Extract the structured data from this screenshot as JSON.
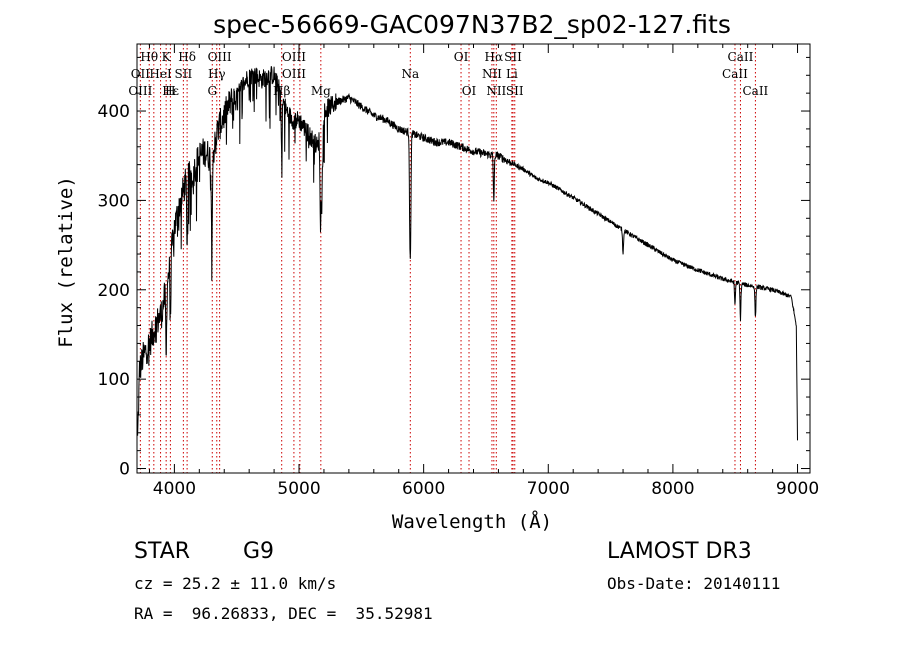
{
  "chart_data": {
    "type": "line",
    "title": "spec-56669-GAC097N37B2_sp02-127.fits",
    "xlabel": "Wavelength (Å)",
    "ylabel": "Flux (relative)",
    "xlim": [
      3700,
      9100
    ],
    "ylim": [
      -5,
      475
    ],
    "xticks": [
      4000,
      5000,
      6000,
      7000,
      8000,
      9000
    ],
    "yticks": [
      0,
      100,
      200,
      300,
      400
    ],
    "grid": false,
    "continuum": {
      "x": [
        3700,
        3720,
        3750,
        3800,
        3850,
        3900,
        3950,
        4000,
        4050,
        4100,
        4150,
        4200,
        4250,
        4300,
        4350,
        4400,
        4450,
        4500,
        4550,
        4600,
        4650,
        4700,
        4750,
        4800,
        4850,
        4900,
        4950,
        5000,
        5050,
        5100,
        5150,
        5200,
        5300,
        5400,
        5500,
        5600,
        5700,
        5800,
        5900,
        6000,
        6100,
        6200,
        6300,
        6400,
        6500,
        6600,
        6700,
        6800,
        6900,
        7000,
        7200,
        7400,
        7600,
        7800,
        8000,
        8200,
        8400,
        8600,
        8800,
        8950,
        8990,
        9000
      ],
      "y": [
        5,
        110,
        125,
        140,
        160,
        175,
        215,
        270,
        300,
        325,
        330,
        350,
        355,
        345,
        380,
        395,
        410,
        415,
        430,
        440,
        440,
        435,
        440,
        440,
        420,
        400,
        390,
        390,
        380,
        370,
        360,
        400,
        410,
        415,
        405,
        395,
        390,
        380,
        375,
        370,
        365,
        365,
        360,
        355,
        352,
        350,
        342,
        335,
        325,
        320,
        303,
        285,
        267,
        250,
        233,
        222,
        212,
        205,
        200,
        192,
        160,
        30
      ],
      "noise": 10
    },
    "absorption_features": [
      {
        "x": 3934,
        "depth": 80
      },
      {
        "x": 3969,
        "depth": 60
      },
      {
        "x": 4102,
        "depth": 70
      },
      {
        "x": 4300,
        "depth": 90
      },
      {
        "x": 4861,
        "depth": 60
      },
      {
        "x": 5172,
        "depth": 110
      },
      {
        "x": 5183,
        "depth": 90
      },
      {
        "x": 5890,
        "depth": 110
      },
      {
        "x": 5896,
        "depth": 80
      },
      {
        "x": 6563,
        "depth": 50
      },
      {
        "x": 7600,
        "depth": 25
      },
      {
        "x": 8498,
        "depth": 25
      },
      {
        "x": 8542,
        "depth": 40
      },
      {
        "x": 8662,
        "depth": 35
      }
    ],
    "spectral_lines": [
      {
        "label": "Hθ",
        "x": 3798,
        "row": 0
      },
      {
        "label": "K",
        "x": 3934,
        "row": 0
      },
      {
        "label": "Hδ",
        "x": 4102,
        "row": 0
      },
      {
        "label": "OIII",
        "x": 4363,
        "row": 0
      },
      {
        "label": "OIII",
        "x": 4959,
        "row": 0
      },
      {
        "label": "OI",
        "x": 6300,
        "row": 0
      },
      {
        "label": "Hα",
        "x": 6563,
        "row": 0
      },
      {
        "label": "SII",
        "x": 6717,
        "row": 0
      },
      {
        "label": "CaII",
        "x": 8542,
        "row": 0
      },
      {
        "label": "OII",
        "x": 3727,
        "row": 1
      },
      {
        "label": "HeI",
        "x": 3889,
        "row": 1
      },
      {
        "label": "SII",
        "x": 4072,
        "row": 1
      },
      {
        "label": "Hγ",
        "x": 4340,
        "row": 1
      },
      {
        "label": "OIII",
        "x": 4959,
        "row": 1
      },
      {
        "label": "Na",
        "x": 5893,
        "row": 1
      },
      {
        "label": "NII",
        "x": 6548,
        "row": 1
      },
      {
        "label": "Li",
        "x": 6708,
        "row": 1
      },
      {
        "label": "CaII",
        "x": 8498,
        "row": 1
      },
      {
        "label": "OIII",
        "x": 3727,
        "row": 2
      },
      {
        "label": "Hε",
        "x": 3970,
        "row": 2
      },
      {
        "label": "H",
        "x": 3968,
        "row": 2
      },
      {
        "label": "G",
        "x": 4304,
        "row": 2
      },
      {
        "label": "Hβ",
        "x": 4861,
        "row": 2
      },
      {
        "label": "Mg",
        "x": 5175,
        "row": 2
      },
      {
        "label": "OI",
        "x": 6364,
        "row": 2
      },
      {
        "label": "NII",
        "x": 6583,
        "row": 2
      },
      {
        "label": "SII",
        "x": 6731,
        "row": 2
      },
      {
        "label": "CaII",
        "x": 8662,
        "row": 2
      }
    ],
    "line_markers_x": [
      3727,
      3798,
      3835,
      3889,
      3934,
      3968,
      4072,
      4102,
      4304,
      4340,
      4363,
      4861,
      4959,
      5007,
      5175,
      5893,
      6300,
      6364,
      6548,
      6563,
      6583,
      6708,
      6717,
      6731,
      8498,
      8542,
      8662
    ]
  },
  "footer": {
    "object_class": "STAR",
    "subclass": "G9",
    "redshift": "cz = 25.2 ± 11.0 km/s",
    "coords": "RA =  96.26833, DEC =  35.52981",
    "survey": "LAMOST DR3",
    "obs_date": "Obs-Date: 20140111"
  },
  "colors": {
    "line_marker": "#cc0000",
    "spectrum": "#000000"
  }
}
